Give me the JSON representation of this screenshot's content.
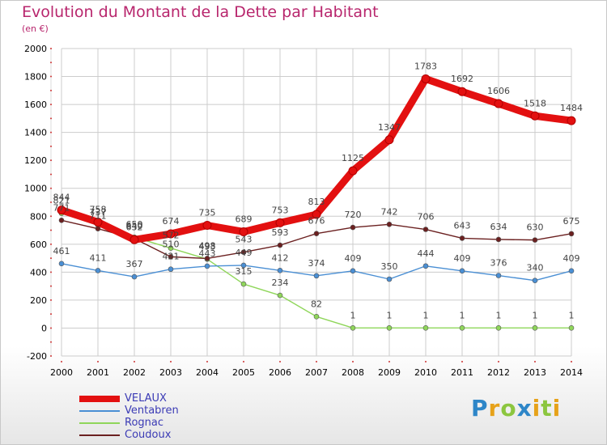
{
  "header": {
    "title": "Evolution du Montant de la Dette par Habitant",
    "unit": "(en €)"
  },
  "chart_data": {
    "type": "line",
    "title": "Evolution du Montant de la Dette par Habitant",
    "ylabel": "(en €)",
    "xlabel": "",
    "ylim": [
      -200,
      2000
    ],
    "yticks": [
      -200,
      0,
      200,
      400,
      600,
      800,
      1000,
      1200,
      1400,
      1600,
      1800,
      2000
    ],
    "categories": [
      "2000",
      "2001",
      "2002",
      "2003",
      "2004",
      "2005",
      "2006",
      "2007",
      "2008",
      "2009",
      "2010",
      "2011",
      "2012",
      "2013",
      "2014"
    ],
    "series": [
      {
        "name": "VELAUX",
        "color": "#e31010",
        "values": [
          844,
          758,
          632,
          674,
          735,
          689,
          753,
          813,
          1125,
          1347,
          1783,
          1692,
          1606,
          1518,
          1484
        ]
      },
      {
        "name": "Ventabren",
        "color": "#4a8fd4",
        "values": [
          461,
          411,
          367,
          421,
          443,
          449,
          412,
          374,
          409,
          350,
          444,
          409,
          376,
          340,
          409
        ]
      },
      {
        "name": "Rognac",
        "color": "#8fd65a",
        "values": [
          821,
          737,
          650,
          572,
          493,
          315,
          234,
          82,
          1,
          1,
          1,
          1,
          1,
          1,
          1
        ]
      },
      {
        "name": "Coudoux",
        "color": "#6b2020",
        "values": [
          771,
          711,
          640,
          510,
          498,
          543,
          593,
          676,
          720,
          742,
          706,
          643,
          634,
          630,
          675
        ]
      }
    ]
  },
  "legend": {
    "items": [
      "VELAUX",
      "Ventabren",
      "Rognac",
      "Coudoux"
    ]
  },
  "logo": {
    "text": "Proxiti",
    "letters": [
      "P",
      "r",
      "o",
      "x",
      "i",
      "t",
      "i"
    ],
    "colors": [
      "#2e86c8",
      "#e6a21a",
      "#8cc63f",
      "#2e86c8",
      "#e6a21a",
      "#8cc63f",
      "#e6a21a"
    ]
  }
}
